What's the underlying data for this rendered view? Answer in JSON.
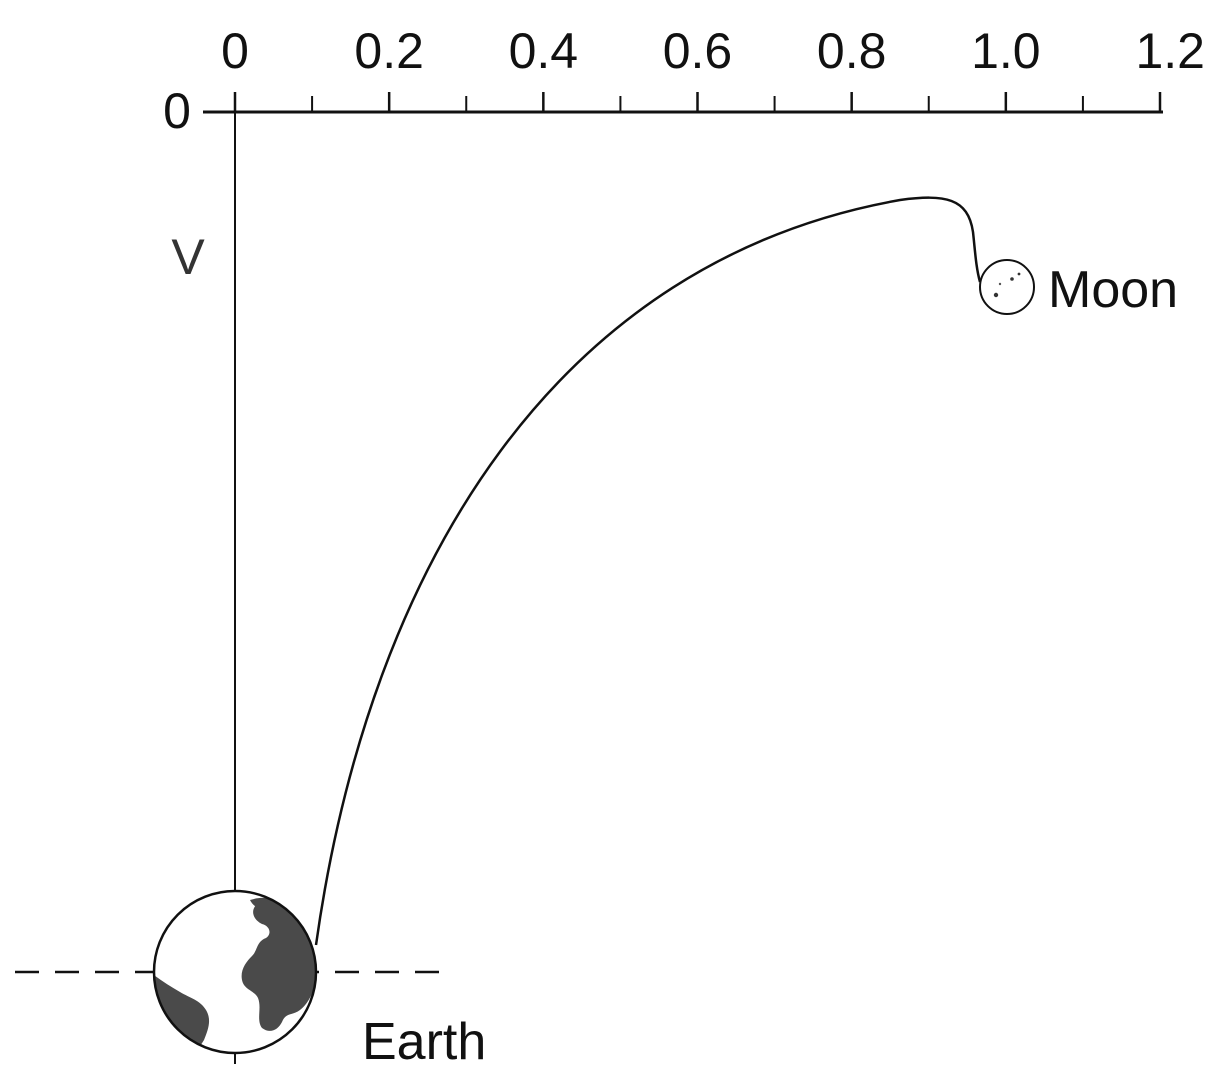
{
  "x_axis": {
    "tick_labels": [
      "0",
      "0.2",
      "0.4",
      "0.6",
      "0.8",
      "1.0",
      "1.2"
    ],
    "minor_ticks": [
      0.1,
      0.3,
      0.5,
      0.7,
      0.9,
      1.1
    ]
  },
  "y_axis": {
    "zero_label": "0",
    "label": "V"
  },
  "trajectory": {
    "from": "Earth",
    "to": "Moon",
    "apex_x": 0.89
  },
  "bodies": {
    "moon_label": "Moon",
    "earth_label": "Earth"
  },
  "colors": {
    "ink": "#111111",
    "earth_land": "#4a4a4a",
    "background": "#ffffff"
  },
  "icons": {
    "earth": "earth-globe-icon",
    "moon": "moon-icon"
  }
}
